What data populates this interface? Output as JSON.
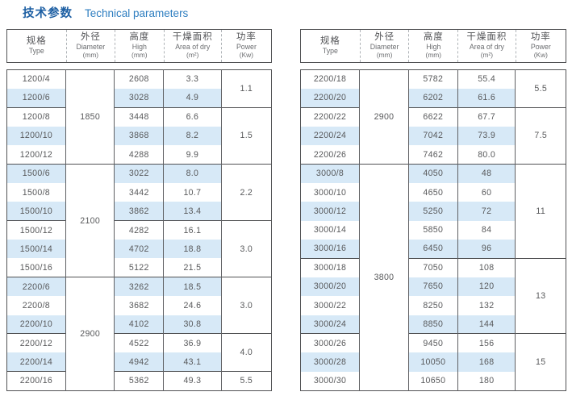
{
  "title": {
    "zh": "技术参数",
    "en": "Technical parameters"
  },
  "columns": {
    "type": {
      "zh": "规格",
      "en": "Type",
      "unit": ""
    },
    "diameter": {
      "zh": "外径",
      "en": "Diameter",
      "unit": "(mm)"
    },
    "high": {
      "zh": "高度",
      "en": "High",
      "unit": "(mm)"
    },
    "area": {
      "zh": "干燥面积",
      "en": "Area of dry",
      "unit": "(m²)"
    },
    "power": {
      "zh": "功率",
      "en": "Power",
      "unit": "(Kw)"
    }
  },
  "tables": [
    {
      "name": "left",
      "rows": [
        {
          "type": "1200/4",
          "high": "2608",
          "area": "3.3"
        },
        {
          "type": "1200/6",
          "high": "3028",
          "area": "4.9"
        },
        {
          "type": "1200/8",
          "high": "3448",
          "area": "6.6"
        },
        {
          "type": "1200/10",
          "high": "3868",
          "area": "8.2"
        },
        {
          "type": "1200/12",
          "high": "4288",
          "area": "9.9"
        },
        {
          "type": "1500/6",
          "high": "3022",
          "area": "8.0"
        },
        {
          "type": "1500/8",
          "high": "3442",
          "area": "10.7"
        },
        {
          "type": "1500/10",
          "high": "3862",
          "area": "13.4"
        },
        {
          "type": "1500/12",
          "high": "4282",
          "area": "16.1"
        },
        {
          "type": "1500/14",
          "high": "4702",
          "area": "18.8"
        },
        {
          "type": "1500/16",
          "high": "5122",
          "area": "21.5"
        },
        {
          "type": "2200/6",
          "high": "3262",
          "area": "18.5"
        },
        {
          "type": "2200/8",
          "high": "3682",
          "area": "24.6"
        },
        {
          "type": "2200/10",
          "high": "4102",
          "area": "30.8"
        },
        {
          "type": "2200/12",
          "high": "4522",
          "area": "36.9"
        },
        {
          "type": "2200/14",
          "high": "4942",
          "area": "43.1"
        },
        {
          "type": "2200/16",
          "high": "5362",
          "area": "49.3"
        }
      ],
      "diameter_groups": [
        {
          "value": "1850",
          "start": 0,
          "span": 5
        },
        {
          "value": "2100",
          "start": 5,
          "span": 6
        },
        {
          "value": "2900",
          "start": 11,
          "span": 6
        }
      ],
      "power_groups": [
        {
          "value": "1.1",
          "start": 0,
          "span": 2
        },
        {
          "value": "1.5",
          "start": 2,
          "span": 3
        },
        {
          "value": "2.2",
          "start": 5,
          "span": 3
        },
        {
          "value": "3.0",
          "start": 8,
          "span": 3
        },
        {
          "value": "3.0",
          "start": 11,
          "span": 3
        },
        {
          "value": "4.0",
          "start": 14,
          "span": 2
        },
        {
          "value": "5.5",
          "start": 16,
          "span": 1
        }
      ]
    },
    {
      "name": "right",
      "rows": [
        {
          "type": "2200/18",
          "high": "5782",
          "area": "55.4"
        },
        {
          "type": "2200/20",
          "high": "6202",
          "area": "61.6"
        },
        {
          "type": "2200/22",
          "high": "6622",
          "area": "67.7"
        },
        {
          "type": "2200/24",
          "high": "7042",
          "area": "73.9"
        },
        {
          "type": "2200/26",
          "high": "7462",
          "area": "80.0"
        },
        {
          "type": "3000/8",
          "high": "4050",
          "area": "48"
        },
        {
          "type": "3000/10",
          "high": "4650",
          "area": "60"
        },
        {
          "type": "3000/12",
          "high": "5250",
          "area": "72"
        },
        {
          "type": "3000/14",
          "high": "5850",
          "area": "84"
        },
        {
          "type": "3000/16",
          "high": "6450",
          "area": "96"
        },
        {
          "type": "3000/18",
          "high": "7050",
          "area": "108"
        },
        {
          "type": "3000/20",
          "high": "7650",
          "area": "120"
        },
        {
          "type": "3000/22",
          "high": "8250",
          "area": "132"
        },
        {
          "type": "3000/24",
          "high": "8850",
          "area": "144"
        },
        {
          "type": "3000/26",
          "high": "9450",
          "area": "156"
        },
        {
          "type": "3000/28",
          "high": "10050",
          "area": "168"
        },
        {
          "type": "3000/30",
          "high": "10650",
          "area": "180"
        }
      ],
      "diameter_groups": [
        {
          "value": "2900",
          "start": 0,
          "span": 5
        },
        {
          "value": "3800",
          "start": 5,
          "span": 12
        }
      ],
      "power_groups": [
        {
          "value": "5.5",
          "start": 0,
          "span": 2
        },
        {
          "value": "7.5",
          "start": 2,
          "span": 3
        },
        {
          "value": "11",
          "start": 5,
          "span": 5
        },
        {
          "value": "13",
          "start": 10,
          "span": 4
        },
        {
          "value": "15",
          "start": 14,
          "span": 3
        }
      ]
    }
  ],
  "colors": {
    "stripe_blue": "#d7e9f7",
    "title_zh_blue": "#1d5fa3",
    "title_en_blue": "#2e7ec0",
    "border_dark": "#515254",
    "text_grey": "#58595b"
  }
}
